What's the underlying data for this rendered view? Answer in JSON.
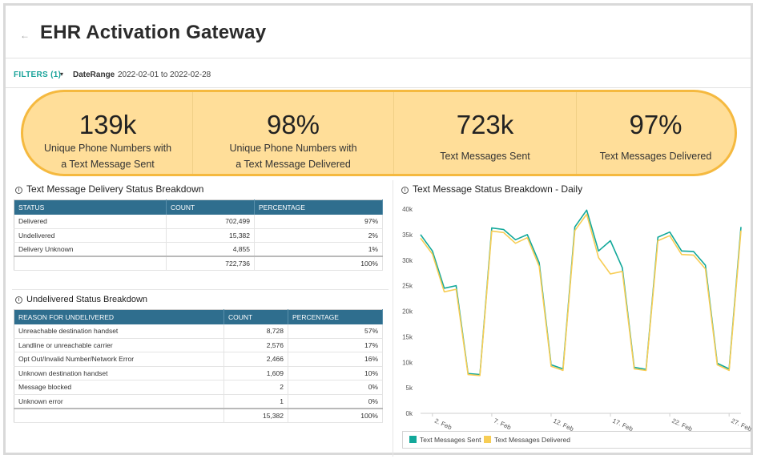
{
  "header": {
    "back_icon": "arrow-left-icon",
    "back_glyph": "←",
    "title": "EHR Activation Gateway"
  },
  "filters": {
    "label": "FILTERS (1)",
    "caret": "▾",
    "date_range_label": "DateRange",
    "date_range_value": "2022-02-01 to 2022-02-28"
  },
  "kpis": [
    {
      "value": "139k",
      "label_line1": "Unique Phone Numbers with",
      "label_line2": "a Text Message Sent"
    },
    {
      "value": "98%",
      "label_line1": "Unique Phone Numbers with",
      "label_line2": "a Text Message Delivered"
    },
    {
      "value": "723k",
      "label_line1": "Text Messages Sent",
      "label_line2": ""
    },
    {
      "value": "97%",
      "label_line1": "Text Messages Delivered",
      "label_line2": ""
    }
  ],
  "info_glyph": "i",
  "delivery_table": {
    "title": "Text Message Delivery Status Breakdown",
    "columns": [
      "STATUS",
      "COUNT",
      "PERCENTAGE"
    ],
    "rows": [
      [
        "Delivered",
        "702,499",
        "97%"
      ],
      [
        "Undelivered",
        "15,382",
        "2%"
      ],
      [
        "Delivery Unknown",
        "4,855",
        "1%"
      ]
    ],
    "total": [
      "",
      "722,736",
      "100%"
    ]
  },
  "undelivered_table": {
    "title": "Undelivered Status Breakdown",
    "columns": [
      "REASON FOR UNDELIVERED",
      "COUNT",
      "PERCENTAGE"
    ],
    "rows": [
      [
        "Unreachable destination handset",
        "8,728",
        "57%"
      ],
      [
        "Landline or unreachable carrier",
        "2,576",
        "17%"
      ],
      [
        "Opt Out/Invalid Number/Network Error",
        "2,466",
        "16%"
      ],
      [
        "Unknown destination handset",
        "1,609",
        "10%"
      ],
      [
        "Message blocked",
        "2",
        "0%"
      ],
      [
        "Unknown error",
        "1",
        "0%"
      ]
    ],
    "total": [
      "",
      "15,382",
      "100%"
    ]
  },
  "daily_chart_title": "Text Message Status Breakdown - Daily",
  "colors": {
    "sent": "#12a89a",
    "delivered": "#f7cd55",
    "header_bg": "#2f6e8e",
    "kpi_bg": "#ffde99",
    "kpi_border": "#f5b93f",
    "accent": "#1aa39a"
  },
  "chart_data": {
    "type": "line",
    "title": "Text Message Status Breakdown - Daily",
    "xlabel": "",
    "ylabel": "",
    "x": [
      "2022-02-01",
      "2022-02-02",
      "2022-02-03",
      "2022-02-04",
      "2022-02-05",
      "2022-02-06",
      "2022-02-07",
      "2022-02-08",
      "2022-02-09",
      "2022-02-10",
      "2022-02-11",
      "2022-02-12",
      "2022-02-13",
      "2022-02-14",
      "2022-02-15",
      "2022-02-16",
      "2022-02-17",
      "2022-02-18",
      "2022-02-19",
      "2022-02-20",
      "2022-02-21",
      "2022-02-22",
      "2022-02-23",
      "2022-02-24",
      "2022-02-25",
      "2022-02-26",
      "2022-02-27",
      "2022-02-28"
    ],
    "x_tick_labels": [
      {
        "x": "2022-02-02",
        "label": "2. Feb"
      },
      {
        "x": "2022-02-07",
        "label": "7. Feb"
      },
      {
        "x": "2022-02-12",
        "label": "12. Feb"
      },
      {
        "x": "2022-02-17",
        "label": "17. Feb"
      },
      {
        "x": "2022-02-22",
        "label": "22. Feb"
      },
      {
        "x": "2022-02-27",
        "label": "27. Feb"
      }
    ],
    "y_ticks": [
      0,
      5000,
      10000,
      15000,
      20000,
      25000,
      30000,
      35000,
      40000
    ],
    "y_tick_labels": [
      "0k",
      "5k",
      "10k",
      "15k",
      "20k",
      "25k",
      "30k",
      "35k",
      "40k"
    ],
    "ylim": [
      0,
      40000
    ],
    "grid": false,
    "legend": "bottom",
    "series": [
      {
        "name": "Text Messages Sent",
        "color": "#12a89a",
        "values": [
          35000,
          31800,
          24500,
          25000,
          7800,
          7600,
          36300,
          36000,
          34000,
          35000,
          29500,
          9500,
          8700,
          36500,
          39800,
          31800,
          33800,
          28500,
          9000,
          8600,
          34500,
          35500,
          31800,
          31700,
          29000,
          9800,
          8700,
          36500
        ]
      },
      {
        "name": "Text Messages Delivered",
        "color": "#f7cd55",
        "values": [
          34300,
          31200,
          23800,
          24300,
          7600,
          7400,
          35700,
          35400,
          33300,
          34400,
          28800,
          9200,
          8400,
          35800,
          39000,
          30500,
          27300,
          27800,
          8700,
          8400,
          33800,
          34800,
          31100,
          31000,
          28300,
          9500,
          8400,
          35800
        ]
      }
    ]
  }
}
